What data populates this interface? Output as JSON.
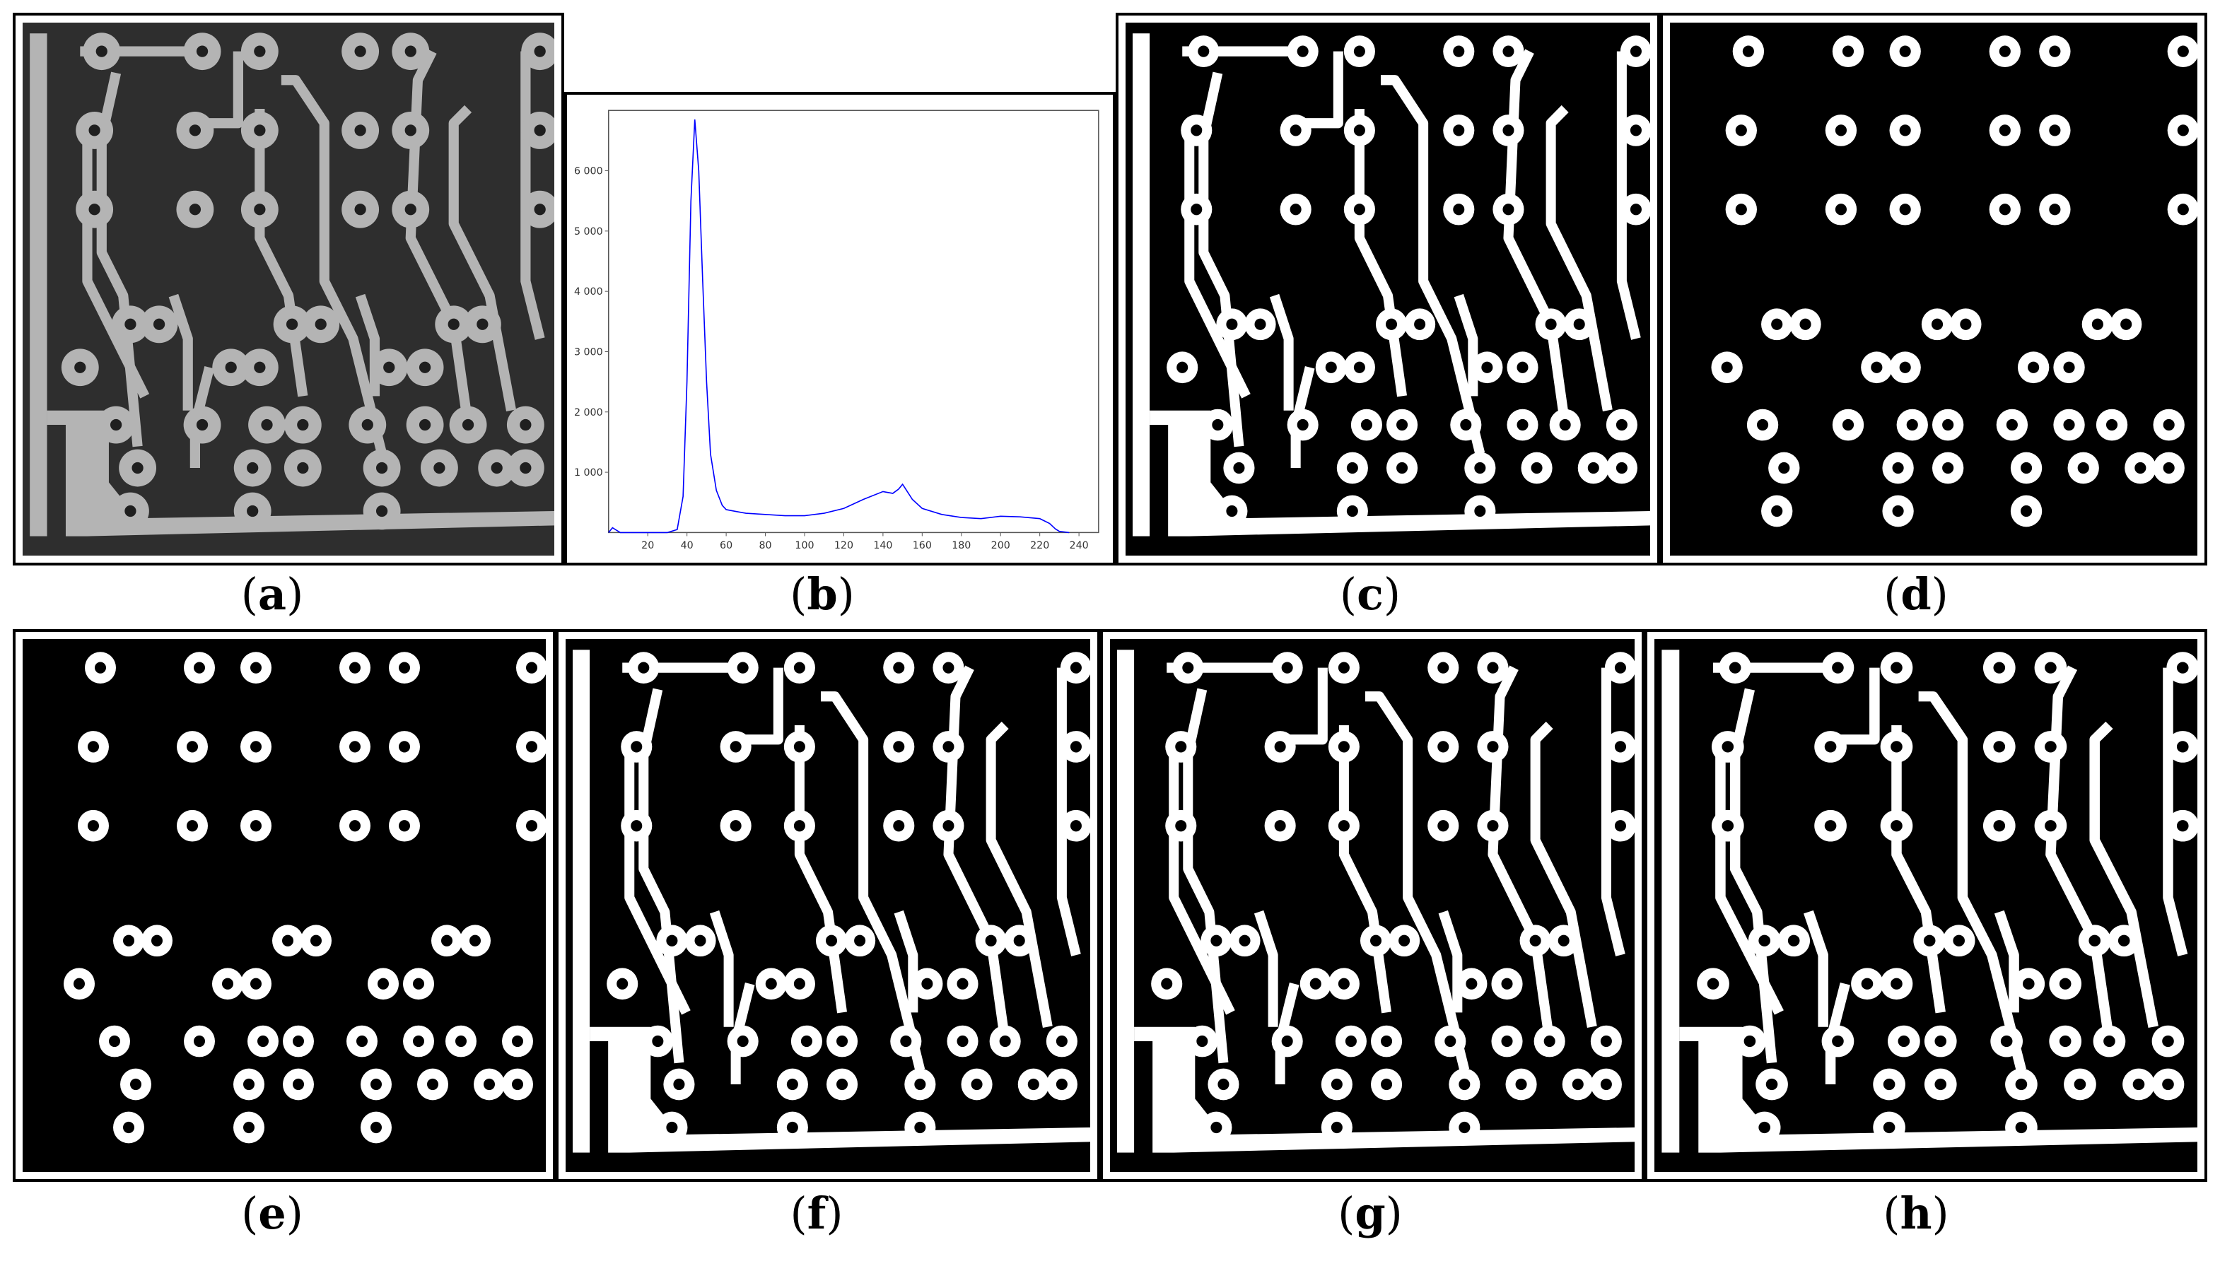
{
  "panels": [
    {
      "id": "a",
      "caption_open": "(",
      "caption_letter": "a",
      "caption_close": ")",
      "content": "pcb-grayscale-photo"
    },
    {
      "id": "b",
      "caption_open": "(",
      "caption_letter": "b",
      "caption_close": ")",
      "content": "histogram-chart"
    },
    {
      "id": "c",
      "caption_open": "(",
      "caption_letter": "c",
      "caption_close": ")",
      "content": "binary-segmentation"
    },
    {
      "id": "d",
      "caption_open": "(",
      "caption_letter": "d",
      "caption_close": ")",
      "content": "binary-segmentation-pads-only"
    },
    {
      "id": "e",
      "caption_open": "(",
      "caption_letter": "e",
      "caption_close": ")",
      "content": "binary-segmentation-pads-only"
    },
    {
      "id": "f",
      "caption_open": "(",
      "caption_letter": "f",
      "caption_close": ")",
      "content": "binary-segmentation"
    },
    {
      "id": "g",
      "caption_open": "(",
      "caption_letter": "g",
      "caption_close": ")",
      "content": "binary-segmentation"
    },
    {
      "id": "h",
      "caption_open": "(",
      "caption_letter": "h",
      "caption_close": ")",
      "content": "binary-segmentation"
    }
  ],
  "chart_data": {
    "type": "line",
    "title": "",
    "xlabel": "",
    "ylabel": "",
    "xlim": [
      0,
      250
    ],
    "ylim": [
      0,
      7000
    ],
    "x_ticks": [
      20,
      40,
      60,
      80,
      100,
      120,
      140,
      160,
      180,
      200,
      220,
      240
    ],
    "y_ticks": [
      1000,
      2000,
      3000,
      4000,
      5000,
      6000
    ],
    "y_tick_labels": [
      "1 000",
      "2 000",
      "3 000",
      "4 000",
      "5 000",
      "6 000"
    ],
    "line_color": "#0000ff",
    "series": [
      {
        "x": [
          0,
          2,
          4,
          6,
          8,
          10,
          20,
          30,
          35,
          38,
          40,
          42,
          44,
          46,
          48,
          50,
          52,
          55,
          58,
          60,
          65,
          70,
          80,
          90,
          100,
          110,
          120,
          130,
          140,
          145,
          148,
          150,
          152,
          155,
          160,
          170,
          180,
          190,
          200,
          210,
          220,
          225,
          228,
          230,
          235
        ],
        "y": [
          0,
          80,
          40,
          0,
          0,
          0,
          0,
          0,
          50,
          600,
          2500,
          5500,
          6850,
          6000,
          4200,
          2500,
          1300,
          700,
          450,
          380,
          350,
          320,
          300,
          280,
          280,
          320,
          400,
          550,
          680,
          650,
          720,
          800,
          700,
          550,
          400,
          300,
          250,
          230,
          270,
          260,
          230,
          150,
          60,
          20,
          0
        ]
      }
    ]
  },
  "colors": {
    "pcb_background": "#2e2e2e",
    "copper_trace": "#b4b4b4",
    "binary_white": "#ffffff",
    "binary_black": "#000000"
  }
}
